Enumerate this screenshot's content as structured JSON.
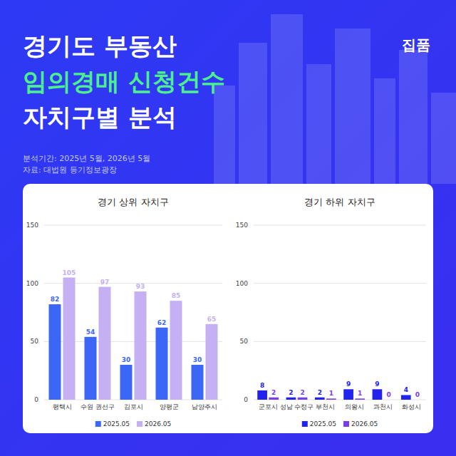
{
  "header": {
    "title_lines": [
      "경기도 부동산",
      "임의경매 신청건수",
      "자치구별 분석"
    ],
    "logo": "집품",
    "notes": [
      "분석기간: 2025년 5월, 2026년 5월",
      "자료: 대법원 등기정보광장"
    ]
  },
  "chart_data": [
    {
      "type": "bar",
      "title": "경기 상위 자치구",
      "categories": [
        "평택시",
        "수원 권선구",
        "김포시",
        "양평군",
        "남양주시"
      ],
      "series": [
        {
          "name": "2025.05",
          "color": "#3c66f5",
          "values": [
            82,
            54,
            30,
            62,
            30
          ]
        },
        {
          "name": "2026.05",
          "color": "#c4b0f3",
          "values": [
            105,
            97,
            93,
            85,
            65
          ]
        }
      ],
      "ylim": [
        0,
        150
      ],
      "yticks": [
        0,
        50,
        100,
        150
      ],
      "grid": true,
      "legend": "bottom",
      "data_labels": true
    },
    {
      "type": "bar",
      "title": "경기 하위 자치구",
      "categories": [
        "군포시",
        "성남 수정구",
        "부천시",
        "의왕시",
        "과천시",
        "화성시"
      ],
      "series": [
        {
          "name": "2025.05",
          "color": "#2323ee",
          "values": [
            8,
            2,
            2,
            9,
            9,
            4
          ]
        },
        {
          "name": "2026.05",
          "color": "#7a3fe6",
          "values": [
            2,
            2,
            1,
            1,
            0,
            0
          ]
        }
      ],
      "ylim": [
        0,
        150
      ],
      "yticks": [
        0,
        50,
        100,
        150
      ],
      "grid": true,
      "legend": "bottom",
      "data_labels": true
    }
  ]
}
